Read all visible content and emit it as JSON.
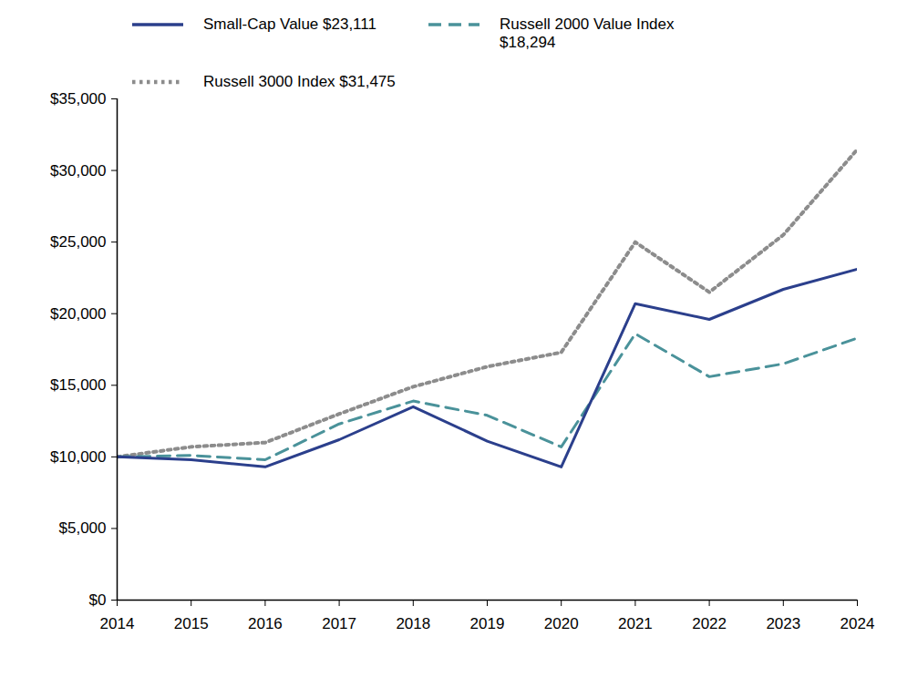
{
  "chart_data": {
    "type": "line",
    "x": [
      2014,
      2015,
      2016,
      2017,
      2018,
      2019,
      2020,
      2021,
      2022,
      2023,
      2024
    ],
    "xlim": [
      2014,
      2024
    ],
    "xticks": [
      2014,
      2015,
      2016,
      2017,
      2018,
      2019,
      2020,
      2021,
      2022,
      2023,
      2024
    ],
    "ylim": [
      0,
      35000
    ],
    "yticks": [
      {
        "value": 0,
        "label": "$0"
      },
      {
        "value": 5000,
        "label": "$5,000"
      },
      {
        "value": 10000,
        "label": "$10,000"
      },
      {
        "value": 15000,
        "label": "$15,000"
      },
      {
        "value": 20000,
        "label": "$20,000"
      },
      {
        "value": 25000,
        "label": "$25,000"
      },
      {
        "value": 30000,
        "label": "$30,000"
      },
      {
        "value": 35000,
        "label": "$35,000"
      }
    ],
    "grid": false,
    "legend": "top",
    "series": [
      {
        "name": "Russell 3000 Index $31,475",
        "color": "#8c8c8c",
        "line_style": "dotted",
        "values": [
          10000,
          10700,
          11000,
          13000,
          14900,
          16300,
          17300,
          25000,
          21500,
          25500,
          31475
        ]
      },
      {
        "name": "Russell 2000 Value Index $18,294",
        "color": "#4a929a",
        "line_style": "dashed",
        "values": [
          10000,
          10100,
          9800,
          12300,
          13900,
          12900,
          10700,
          18600,
          15600,
          16500,
          18294
        ]
      },
      {
        "name": "Small-Cap Value $23,111",
        "color": "#2b3f8c",
        "line_style": "solid",
        "values": [
          10000,
          9800,
          9300,
          11200,
          13500,
          11100,
          9300,
          20700,
          19600,
          21700,
          23111
        ]
      }
    ]
  }
}
